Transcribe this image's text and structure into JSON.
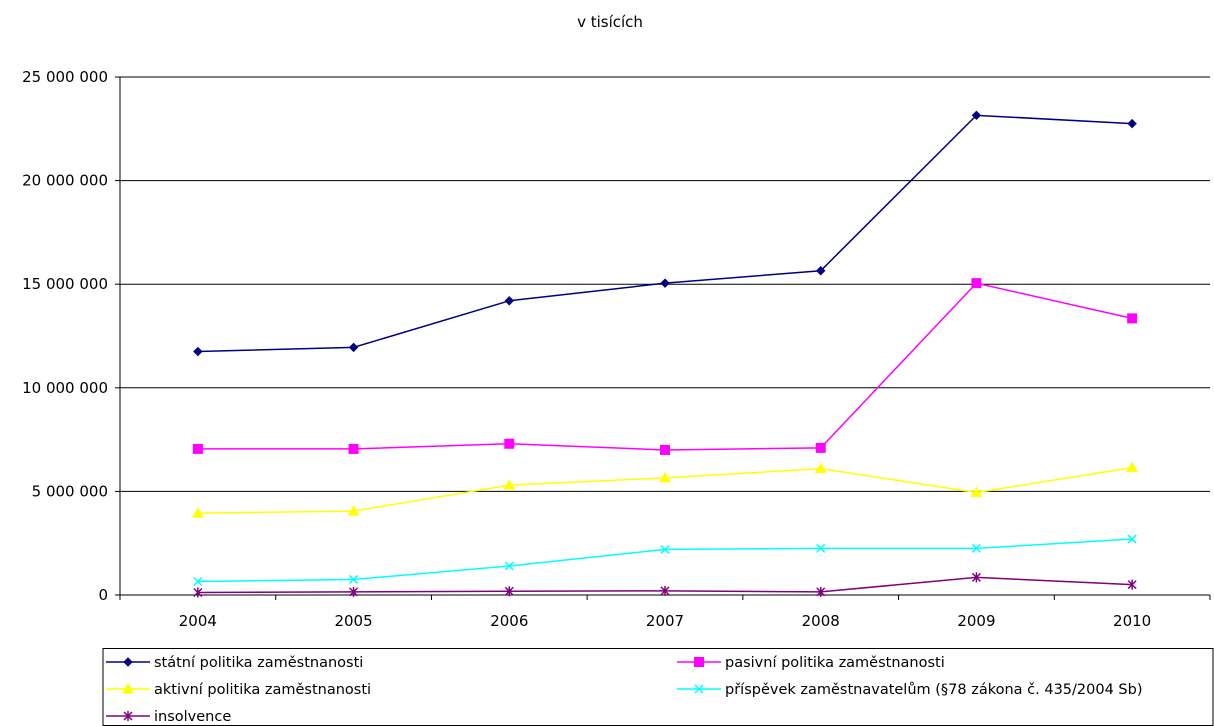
{
  "chart_data": {
    "type": "line",
    "title": "v tisících",
    "xlabel": "",
    "ylabel": "",
    "ylim": [
      0,
      25000000
    ],
    "yticks": [
      0,
      5000000,
      10000000,
      15000000,
      20000000,
      25000000
    ],
    "ytick_labels": [
      "0",
      "5 000 000",
      "10 000 000",
      "15 000 000",
      "20 000 000",
      "25 000 000"
    ],
    "categories": [
      "2004",
      "2005",
      "2006",
      "2007",
      "2008",
      "2009",
      "2010"
    ],
    "grid": "horizontal",
    "legend_position": "bottom",
    "series": [
      {
        "name": "státní politika zaměstnanosti",
        "color": "#000080",
        "marker": "diamond",
        "values": [
          11750000,
          11950000,
          14200000,
          15050000,
          15650000,
          23150000,
          22750000
        ]
      },
      {
        "name": "pasivní politika zaměstnanosti",
        "color": "#FF00FF",
        "marker": "square",
        "values": [
          7050000,
          7050000,
          7300000,
          7000000,
          7100000,
          15050000,
          13350000
        ]
      },
      {
        "name": "aktivní politika zaměstnanosti",
        "color": "#FFFF00",
        "marker": "triangle",
        "values": [
          3950000,
          4050000,
          5300000,
          5650000,
          6100000,
          4950000,
          6150000
        ]
      },
      {
        "name": "příspěvek zaměstnavatelům (§78 zákona č. 435/2004 Sb)",
        "color": "#00FFFF",
        "marker": "x",
        "values": [
          650000,
          750000,
          1400000,
          2200000,
          2250000,
          2250000,
          2700000
        ]
      },
      {
        "name": "insolvence",
        "color": "#800080",
        "marker": "star",
        "values": [
          120000,
          150000,
          180000,
          200000,
          150000,
          850000,
          500000
        ]
      }
    ]
  }
}
